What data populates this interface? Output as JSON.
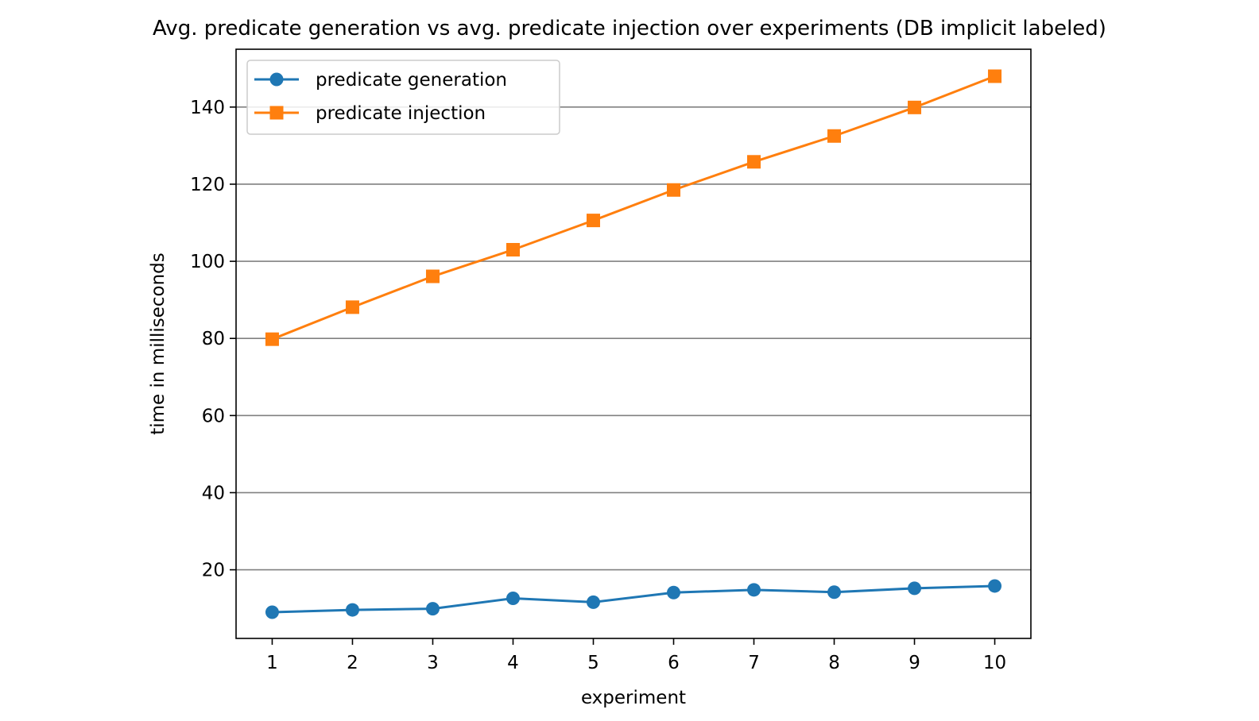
{
  "chart_data": {
    "type": "line",
    "title": "Avg. predicate generation vs avg. predicate injection over experiments (DB implicit labeled)",
    "xlabel": "experiment",
    "ylabel": "time in milliseconds",
    "x": [
      1,
      2,
      3,
      4,
      5,
      6,
      7,
      8,
      9,
      10
    ],
    "xticks": [
      "1",
      "2",
      "3",
      "4",
      "5",
      "6",
      "7",
      "8",
      "9",
      "10"
    ],
    "yticks": [
      20,
      40,
      60,
      80,
      100,
      120,
      140
    ],
    "xlim": [
      0.55,
      10.45
    ],
    "ylim": [
      2.2,
      155
    ],
    "grid": "horizontal",
    "legend_position": "top-left",
    "series": [
      {
        "name": "predicate generation",
        "color": "#1f77b4",
        "marker": "circle",
        "values": [
          9.0,
          9.6,
          9.9,
          12.6,
          11.6,
          14.1,
          14.8,
          14.2,
          15.2,
          15.8
        ]
      },
      {
        "name": "predicate injection",
        "color": "#ff7f0e",
        "marker": "square",
        "values": [
          79.8,
          88.1,
          96.1,
          103.0,
          110.6,
          118.5,
          125.8,
          132.5,
          139.9,
          148.0
        ]
      }
    ]
  }
}
